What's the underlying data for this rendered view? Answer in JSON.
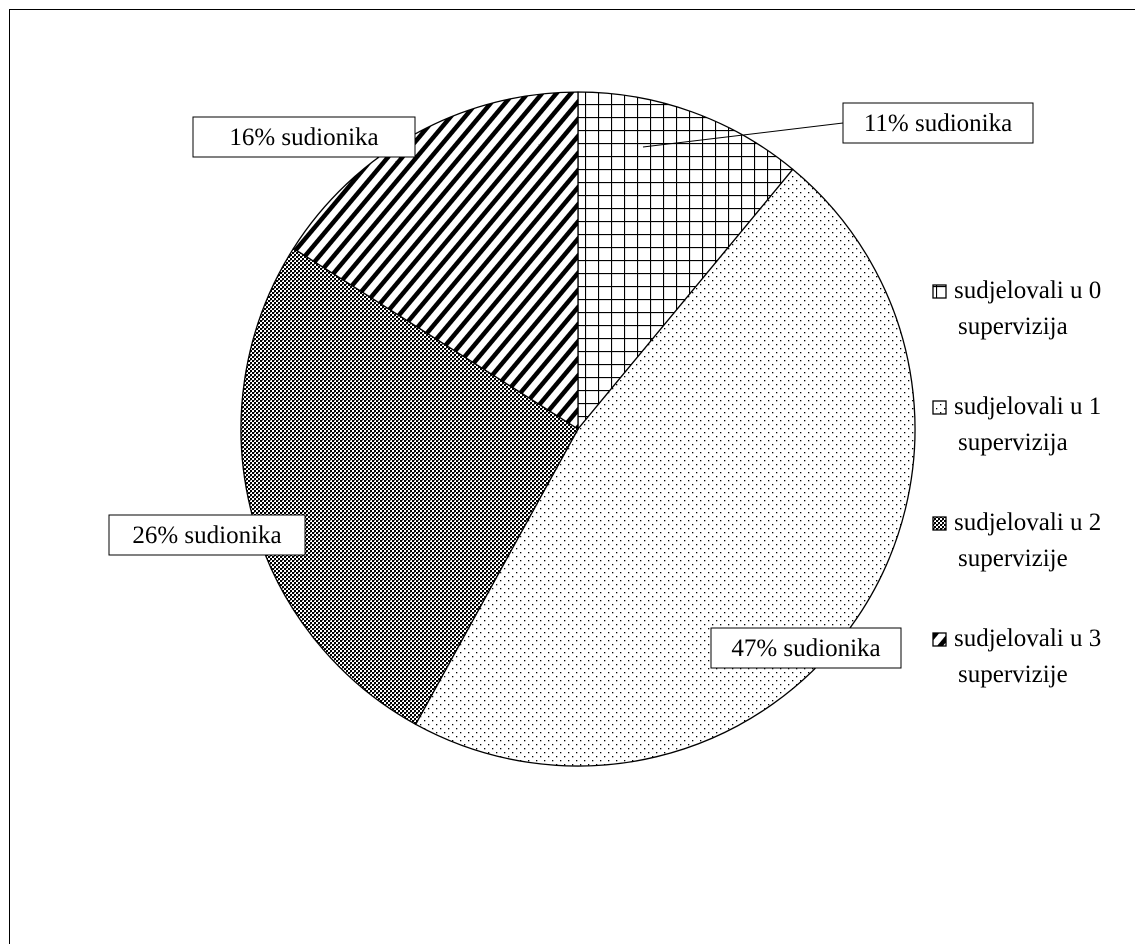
{
  "chart_data": {
    "type": "pie",
    "title": "",
    "slices": [
      {
        "label": "11% sudionika",
        "value": 11,
        "pattern": "grid",
        "legend_lines": [
          "sudjelovali u 0",
          "supervizija"
        ]
      },
      {
        "label": "47% sudionika",
        "value": 47,
        "pattern": "dots",
        "legend_lines": [
          "sudjelovali u 1",
          "supervizija"
        ]
      },
      {
        "label": "26% sudionika",
        "value": 26,
        "pattern": "dense",
        "legend_lines": [
          "sudjelovali u 2",
          "supervizije"
        ]
      },
      {
        "label": "16% sudionika",
        "value": 16,
        "pattern": "diagonal",
        "legend_lines": [
          "sudjelovali u 3",
          "supervizije"
        ]
      }
    ],
    "legend_position": "right",
    "colors": {
      "stroke": "#000000",
      "fill": "#ffffff"
    }
  }
}
